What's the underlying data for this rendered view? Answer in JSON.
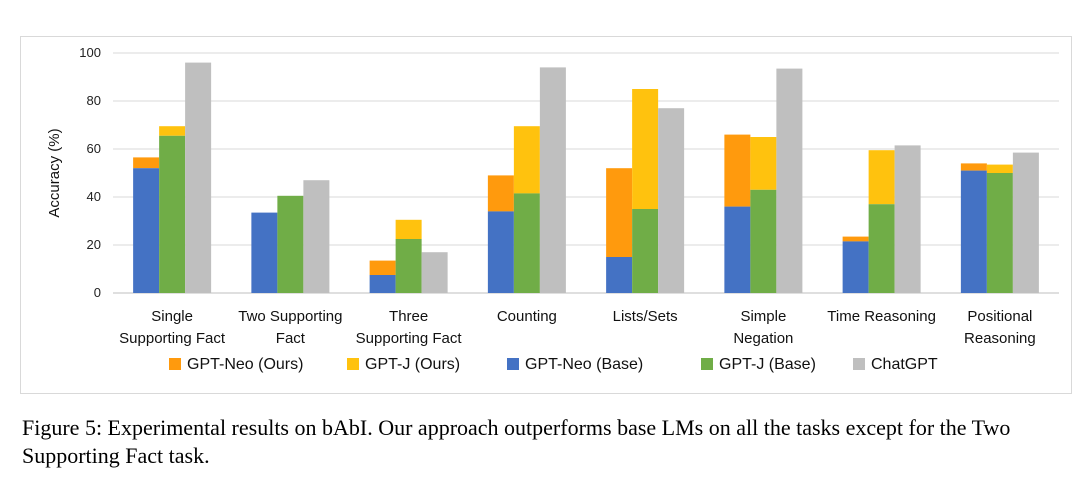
{
  "chart_data": {
    "type": "bar",
    "ylabel": "Accuracy (%)",
    "xlabel": "",
    "ylim": [
      0,
      100
    ],
    "yticks": [
      0,
      20,
      40,
      60,
      80,
      100
    ],
    "grid": true,
    "legend_position": "bottom",
    "categories": [
      [
        "Single",
        "Supporting Fact"
      ],
      [
        "Two Supporting",
        "Fact"
      ],
      [
        "Three",
        "Supporting Fact"
      ],
      [
        "Counting"
      ],
      [
        "Lists/Sets"
      ],
      [
        "Simple",
        "Negation"
      ],
      [
        "Time Reasoning"
      ],
      [
        "Positional",
        "Reasoning"
      ]
    ],
    "stacks": [
      {
        "base": {
          "name": "GPT-Neo (Base)",
          "values": [
            52,
            33.5,
            7.5,
            34,
            15,
            36,
            21.5,
            51
          ]
        },
        "ours": {
          "name": "GPT-Neo (Ours)",
          "values": [
            56.5,
            33.5,
            13.5,
            49,
            52,
            66,
            23.5,
            54
          ]
        }
      },
      {
        "base": {
          "name": "GPT-J (Base)",
          "values": [
            65.5,
            40.5,
            22.5,
            41.5,
            35,
            43,
            37,
            50
          ]
        },
        "ours": {
          "name": "GPT-J (Ours)",
          "values": [
            69.5,
            40.5,
            30.5,
            69.5,
            85,
            65,
            59.5,
            53.5
          ]
        }
      }
    ],
    "series": [
      {
        "name": "ChatGPT",
        "values": [
          96,
          47,
          17,
          94,
          77,
          93.5,
          61.5,
          58.5
        ]
      }
    ],
    "legend": [
      "GPT-Neo (Ours)",
      "GPT-J (Ours)",
      "GPT-Neo (Base)",
      "GPT-J (Base)",
      "ChatGPT"
    ],
    "colors": {
      "GPT-Neo (Ours)": "#ff9a0d",
      "GPT-J (Ours)": "#ffc20e",
      "GPT-Neo (Base)": "#4472c4",
      "GPT-J (Base)": "#70ad47",
      "ChatGPT": "#bfbfbf"
    }
  },
  "caption": "Figure 5: Experimental results on bAbI. Our approach outperforms base LMs on all the tasks except for the Two Supporting Fact task."
}
